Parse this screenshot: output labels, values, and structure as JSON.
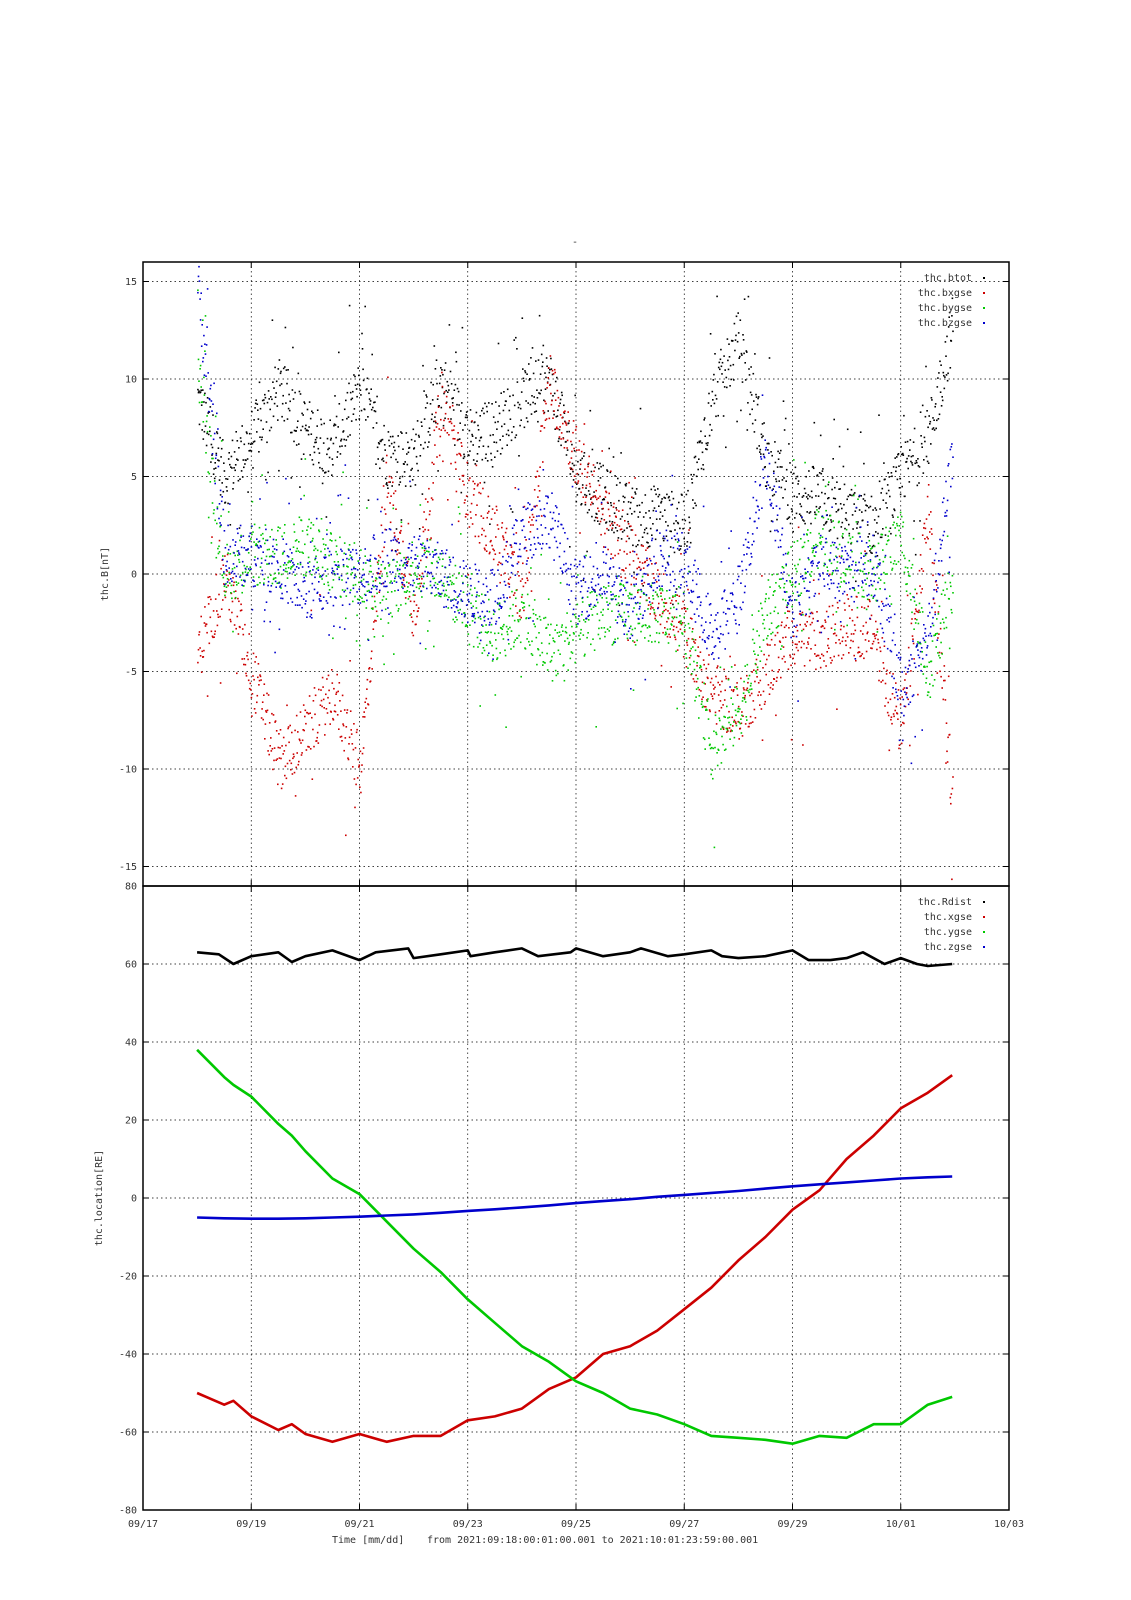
{
  "title": "-",
  "footer": {
    "time_label": "Time [mm/dd]",
    "range_text": "from 2021:09:18:00:01:00.001  to  2021:10:01:23:59:00.001"
  },
  "x_axis": {
    "ticks": [
      {
        "day": -1,
        "label": "09/17"
      },
      {
        "day": 1,
        "label": "09/19"
      },
      {
        "day": 3,
        "label": "09/21"
      },
      {
        "day": 5,
        "label": "09/23"
      },
      {
        "day": 7,
        "label": "09/25"
      },
      {
        "day": 9,
        "label": "09/27"
      },
      {
        "day": 11,
        "label": "09/29"
      },
      {
        "day": 13,
        "label": "10/01"
      },
      {
        "day": 15,
        "label": "10/03"
      }
    ],
    "xlim": [
      -1,
      15
    ]
  },
  "chart_data": [
    {
      "type": "scatter",
      "ylabel": "thc.B[nT]",
      "ylim": [
        -16,
        16
      ],
      "yticks": [
        -15,
        -10,
        -5,
        0,
        5,
        10,
        15
      ],
      "grid": true,
      "legend_position": "top-right",
      "series": [
        {
          "name": "thc.btot",
          "color": "#000000",
          "x": [
            0,
            0.5,
            1,
            1.5,
            2,
            2.5,
            3,
            3.5,
            4,
            4.5,
            5,
            5.5,
            6,
            6.5,
            7,
            7.5,
            8,
            8.5,
            9,
            9.5,
            10,
            10.5,
            11,
            11.5,
            12,
            12.5,
            13,
            13.5,
            13.95
          ],
          "y": [
            9,
            5,
            7,
            9.5,
            7.5,
            6.5,
            9.5,
            6,
            6,
            10,
            7,
            7.5,
            9,
            10,
            5,
            4,
            3,
            3,
            2.5,
            9,
            12,
            6,
            4,
            4,
            3,
            2.5,
            5,
            7,
            12.8
          ]
        },
        {
          "name": "thc.bxgse",
          "color": "#cc0000",
          "x": [
            0,
            0.5,
            1,
            1.5,
            2,
            2.5,
            3,
            3.5,
            4,
            4.5,
            5,
            5.5,
            6,
            6.5,
            7,
            7.5,
            8,
            8.5,
            9,
            9.5,
            10,
            10.5,
            11,
            11.5,
            12,
            12.5,
            13,
            13.5,
            13.95
          ],
          "y": [
            -4,
            0,
            -5,
            -9.5,
            -8,
            -6,
            -10,
            5,
            -2,
            9,
            4,
            2,
            -1,
            10,
            6,
            3,
            1,
            -1,
            -3,
            -6,
            -7,
            -5,
            -3,
            -3.5,
            -2.5,
            -3,
            -8,
            3,
            -11.5
          ]
        },
        {
          "name": "thc.bygse",
          "color": "#00c800",
          "x": [
            0,
            0.5,
            1,
            1.5,
            2,
            2.5,
            3,
            3.5,
            4,
            4.5,
            5,
            5.5,
            6,
            6.5,
            7,
            7.5,
            8,
            8.5,
            9,
            9.5,
            10,
            10.5,
            11,
            11.5,
            12,
            12.5,
            13,
            13.5,
            13.95
          ],
          "y": [
            11,
            0,
            1,
            1,
            1.5,
            0.5,
            0,
            -1,
            0.5,
            0,
            -2,
            -3,
            -2,
            -4,
            -3,
            -2,
            -2,
            -2,
            -2.5,
            -9,
            -7,
            -2,
            0,
            2,
            1,
            0,
            2,
            -5,
            -0.5
          ]
        },
        {
          "name": "thc.bzgse",
          "color": "#0000cc",
          "x": [
            0,
            0.5,
            1,
            1.5,
            2,
            2.5,
            3,
            3.5,
            4,
            4.5,
            5,
            5.5,
            6,
            6.5,
            7,
            7.5,
            8,
            8.5,
            9,
            9.5,
            10,
            10.5,
            11,
            11.5,
            12,
            12.5,
            13,
            13.5,
            13.95
          ],
          "y": [
            15,
            1,
            1,
            0.5,
            -1,
            0,
            0,
            1,
            0.5,
            0,
            -1,
            -1,
            2,
            3,
            -1,
            0,
            -2,
            1,
            0.5,
            -3,
            -1,
            6,
            -2,
            0.5,
            0,
            0.5,
            -6,
            -3,
            6
          ]
        }
      ]
    },
    {
      "type": "line",
      "ylabel": "thc.location[RE]",
      "ylim": [
        -80,
        80
      ],
      "yticks": [
        -80,
        -60,
        -40,
        -20,
        0,
        20,
        40,
        60,
        80
      ],
      "grid": true,
      "legend_position": "top-right",
      "series": [
        {
          "name": "thc.Rdist",
          "color": "#000000",
          "x": [
            0,
            0.4,
            0.67,
            1,
            1.5,
            1.75,
            2,
            2.5,
            3,
            3.3,
            3.9,
            4,
            4.5,
            5,
            5.05,
            5.5,
            6,
            6.3,
            6.9,
            7,
            7.5,
            8,
            8.2,
            8.7,
            9,
            9.5,
            9.7,
            10,
            10.5,
            11,
            11.3,
            11.7,
            12,
            12.3,
            12.7,
            13,
            13.3,
            13.5,
            13.95
          ],
          "y": [
            63,
            62.5,
            60,
            62,
            63,
            60.5,
            62,
            63.5,
            61,
            63,
            64,
            61.5,
            62.5,
            63.5,
            62,
            63,
            64,
            62,
            63,
            64,
            62,
            63,
            64,
            62,
            62.5,
            63.5,
            62,
            61.5,
            62,
            63.5,
            61,
            61,
            61.5,
            63,
            60,
            61.5,
            60,
            59.5,
            60
          ]
        },
        {
          "name": "thc.xgse",
          "color": "#cc0000",
          "x": [
            0,
            0.5,
            0.67,
            1,
            1.5,
            1.75,
            2,
            2.5,
            3,
            3.5,
            4,
            4.5,
            5,
            5.5,
            6,
            6.5,
            7,
            7.5,
            8,
            8.5,
            9,
            9.5,
            10,
            10.5,
            11,
            11.5,
            12,
            12.5,
            13,
            13.5,
            13.95
          ],
          "y": [
            -50,
            -53,
            -52,
            -56,
            -59.5,
            -58,
            -60.5,
            -62.5,
            -60.5,
            -62.5,
            -61,
            -61,
            -57,
            -56,
            -54,
            -49,
            -46,
            -40,
            -38,
            -34,
            -28.5,
            -23,
            -16,
            -10,
            -3,
            2,
            10,
            16,
            23,
            27,
            31.5
          ]
        },
        {
          "name": "thc.ygse",
          "color": "#00c800",
          "x": [
            0,
            0.5,
            0.67,
            1,
            1.5,
            1.75,
            2,
            2.5,
            3,
            3.5,
            4,
            4.5,
            5,
            5.5,
            6,
            6.5,
            7,
            7.5,
            8,
            8.5,
            9,
            9.5,
            10,
            10.5,
            11,
            11.5,
            12,
            12.5,
            13,
            13.5,
            13.95
          ],
          "y": [
            38,
            31,
            29,
            26,
            19,
            16,
            12,
            5,
            1,
            -6,
            -13,
            -19,
            -26,
            -32,
            -38,
            -42,
            -47,
            -50,
            -54,
            -55.5,
            -58,
            -61,
            -61.5,
            -62,
            -63,
            -61,
            -61.5,
            -58,
            -58,
            -53,
            -51
          ]
        },
        {
          "name": "thc.zgse",
          "color": "#0000cc",
          "x": [
            0,
            0.5,
            1,
            1.5,
            2,
            2.5,
            3,
            3.5,
            4,
            4.5,
            5,
            5.5,
            6,
            6.5,
            7,
            7.5,
            8,
            8.5,
            9,
            9.5,
            10,
            10.5,
            11,
            11.5,
            12,
            12.5,
            13,
            13.5,
            13.95
          ],
          "y": [
            -5,
            -5.2,
            -5.3,
            -5.3,
            -5.2,
            -5,
            -4.8,
            -4.5,
            -4.2,
            -3.8,
            -3.3,
            -2.9,
            -2.4,
            -1.9,
            -1.3,
            -0.8,
            -0.3,
            0.3,
            0.8,
            1.3,
            1.8,
            2.4,
            3,
            3.5,
            4,
            4.5,
            5,
            5.3,
            5.5
          ]
        }
      ]
    }
  ]
}
